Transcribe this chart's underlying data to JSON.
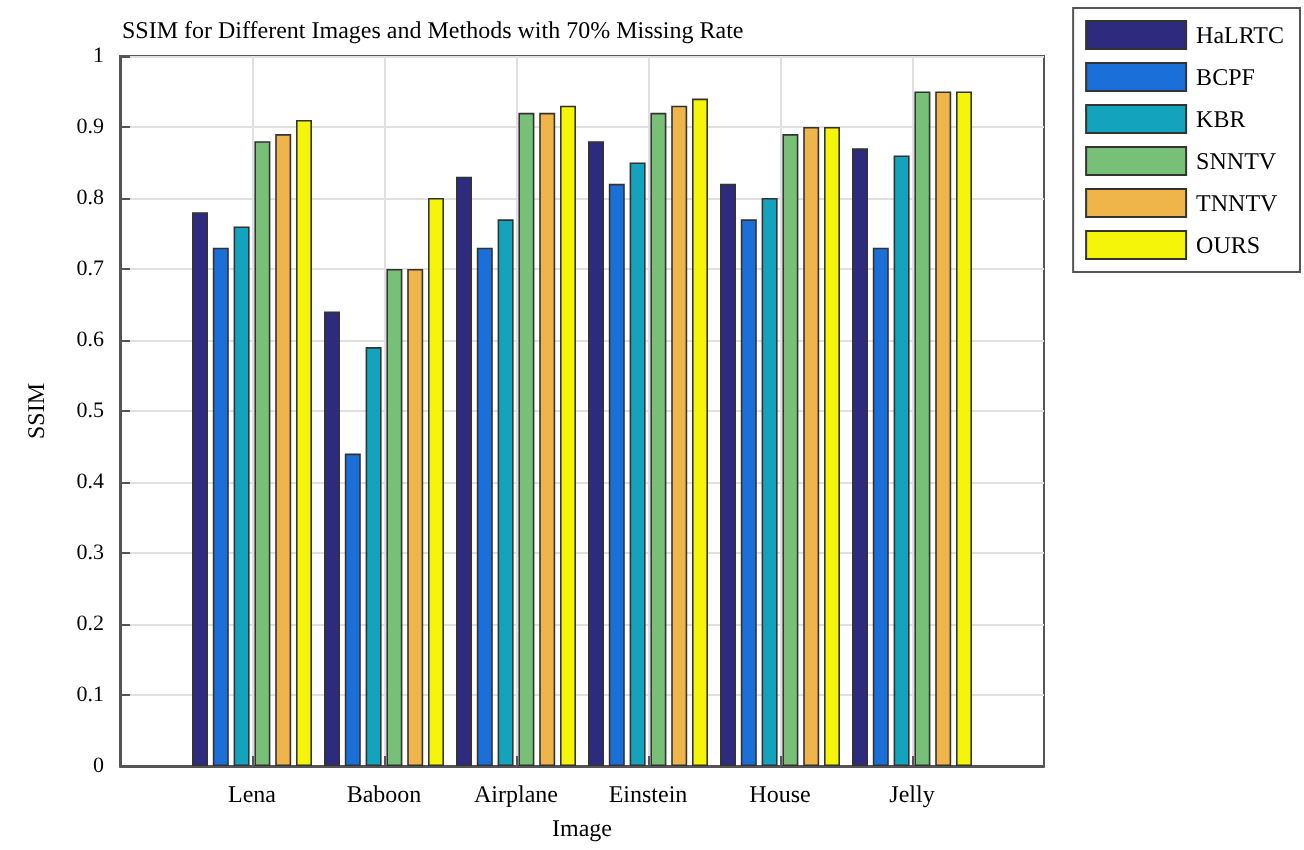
{
  "chart_data": {
    "type": "bar",
    "title": "SSIM for Different Images and Methods with 70% Missing Rate",
    "xlabel": "Image",
    "ylabel": "SSIM",
    "categories": [
      "Lena",
      "Baboon",
      "Airplane",
      "Einstein",
      "House",
      "Jelly"
    ],
    "series": [
      {
        "name": "HaLRTC",
        "color": "#2e2a7e",
        "values": [
          0.78,
          0.64,
          0.83,
          0.88,
          0.82,
          0.87
        ]
      },
      {
        "name": "BCPF",
        "color": "#1a6fd8",
        "values": [
          0.73,
          0.44,
          0.73,
          0.82,
          0.77,
          0.73
        ]
      },
      {
        "name": "KBR",
        "color": "#13a3bd",
        "values": [
          0.76,
          0.59,
          0.77,
          0.85,
          0.8,
          0.86
        ]
      },
      {
        "name": "SNNTV",
        "color": "#78bf78",
        "values": [
          0.88,
          0.7,
          0.92,
          0.92,
          0.89,
          0.95
        ]
      },
      {
        "name": "TNNTV",
        "color": "#f0b54a",
        "values": [
          0.89,
          0.7,
          0.92,
          0.93,
          0.9,
          0.95
        ]
      },
      {
        "name": "OURS",
        "color": "#f5f50a",
        "values": [
          0.91,
          0.8,
          0.93,
          0.94,
          0.9,
          0.95
        ]
      }
    ],
    "ylim": [
      0,
      1
    ],
    "yticks": [
      0,
      0.1,
      0.2,
      0.3,
      0.4,
      0.5,
      0.6,
      0.7,
      0.8,
      0.9,
      1
    ],
    "grid": true,
    "legend": "top right"
  }
}
